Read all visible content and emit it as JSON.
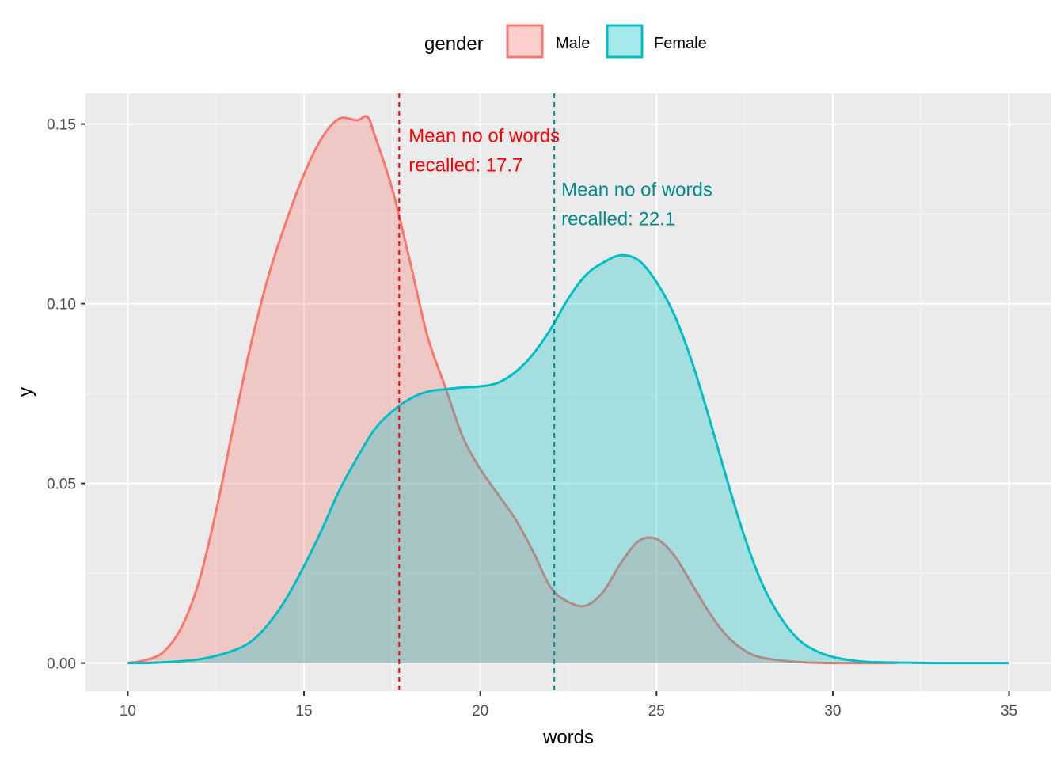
{
  "chart_data": {
    "type": "area",
    "xlabel": "words",
    "ylabel": "y",
    "xlim": [
      8.8,
      36.2
    ],
    "ylim": [
      -0.0078,
      0.1585
    ],
    "x_ticks": [
      10,
      15,
      20,
      25,
      30,
      35
    ],
    "x_tick_labels": [
      "10",
      "15",
      "20",
      "25",
      "30",
      "35"
    ],
    "y_ticks": [
      0.0,
      0.05,
      0.1,
      0.15
    ],
    "y_tick_labels": [
      "0.00",
      "0.05",
      "0.10",
      "0.15"
    ],
    "grid": true,
    "legend": {
      "title": "gender",
      "position": "top",
      "entries": [
        "Male",
        "Female"
      ]
    },
    "series": [
      {
        "name": "Male",
        "color": "#F8766D",
        "fill": "rgba(248,118,109,0.3)",
        "x": [
          10,
          10.5,
          11,
          11.5,
          12,
          12.5,
          13,
          13.5,
          14,
          14.5,
          15,
          15.5,
          16,
          16.5,
          16.8,
          17,
          17.5,
          18,
          18.5,
          19,
          19.5,
          20,
          20.5,
          21,
          21.5,
          22,
          22.5,
          23,
          23.5,
          24,
          24.5,
          25,
          25.5,
          26,
          26.5,
          27,
          27.5,
          28,
          29,
          30,
          31,
          31.8
        ],
        "y": [
          0.0,
          0.0008,
          0.003,
          0.0095,
          0.022,
          0.042,
          0.066,
          0.089,
          0.108,
          0.123,
          0.136,
          0.146,
          0.1515,
          0.151,
          0.152,
          0.147,
          0.132,
          0.112,
          0.091,
          0.077,
          0.063,
          0.054,
          0.047,
          0.04,
          0.031,
          0.021,
          0.017,
          0.016,
          0.02,
          0.028,
          0.034,
          0.0345,
          0.03,
          0.022,
          0.014,
          0.0075,
          0.0035,
          0.0015,
          0.0003,
          0.0,
          0.0,
          0.0
        ]
      },
      {
        "name": "Female",
        "color": "#00BFC4",
        "fill": "rgba(0,191,196,0.3)",
        "x": [
          10,
          10.5,
          11,
          11.5,
          12,
          12.5,
          13,
          13.5,
          14,
          14.5,
          15,
          15.5,
          16,
          16.5,
          17,
          17.5,
          18,
          18.5,
          19,
          19.5,
          20,
          20.5,
          21,
          21.5,
          22,
          22.5,
          23,
          23.5,
          24,
          24.5,
          25,
          25.5,
          26,
          26.5,
          27,
          27.5,
          28,
          28.5,
          29,
          29.5,
          30,
          30.5,
          31,
          32,
          33,
          34,
          35
        ],
        "y": [
          0.0,
          0.0,
          0.0002,
          0.0005,
          0.001,
          0.002,
          0.0035,
          0.006,
          0.011,
          0.018,
          0.027,
          0.037,
          0.048,
          0.057,
          0.065,
          0.07,
          0.0735,
          0.0755,
          0.0762,
          0.0767,
          0.077,
          0.078,
          0.081,
          0.086,
          0.093,
          0.1015,
          0.108,
          0.1115,
          0.1135,
          0.112,
          0.106,
          0.097,
          0.084,
          0.068,
          0.051,
          0.035,
          0.022,
          0.013,
          0.0068,
          0.0035,
          0.0017,
          0.0008,
          0.0003,
          0.0001,
          0.0,
          0.0,
          0.0
        ]
      }
    ],
    "reference_lines": [
      {
        "x": 17.7,
        "color": "#FF0000",
        "style": "dashed"
      },
      {
        "x": 22.1,
        "color": "#008B8B",
        "style": "dashed"
      }
    ],
    "annotations": [
      {
        "lines": [
          "Mean no of words",
          "recalled: 17.7"
        ],
        "x": 17.97,
        "y": 0.145,
        "color": "#FF0000"
      },
      {
        "lines": [
          "Mean no of words",
          "recalled: 22.1"
        ],
        "x": 22.3,
        "y": 0.13,
        "color": "#008B8B"
      }
    ]
  }
}
